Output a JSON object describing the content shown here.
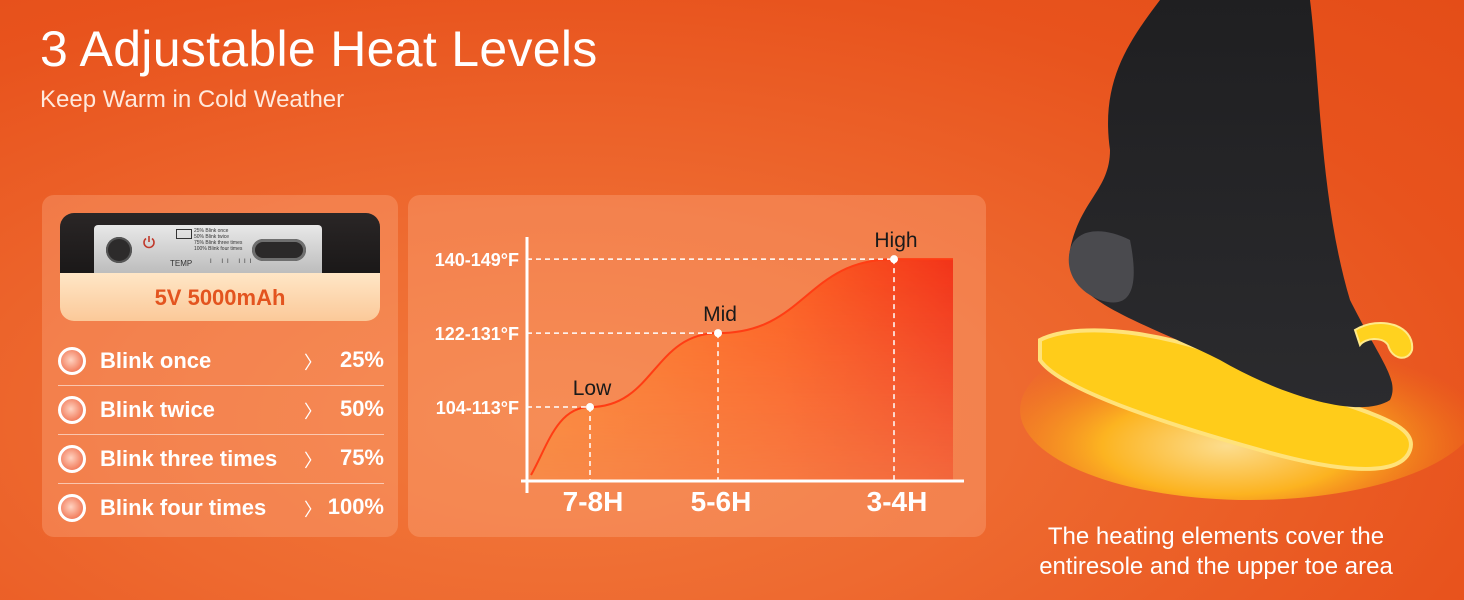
{
  "header": {
    "title": "3 Adjustable Heat Levels",
    "subtitle": "Keep Warm in Cold Weather"
  },
  "device": {
    "capacity": "5V 5000mAh",
    "legend": [
      "25% Blink once",
      "50% Blink twice",
      "75% Blink three times",
      "100% Blink four times"
    ],
    "temp_label": "TEMP",
    "temp_marks": "I II III",
    "icons": [
      "power-icon",
      "battery-icon",
      "usb-c-port"
    ]
  },
  "blink_levels": [
    {
      "label": "Blink once",
      "arrow": "〉",
      "value": "25%"
    },
    {
      "label": "Blink twice",
      "arrow": "〉",
      "value": "50%"
    },
    {
      "label": "Blink three times",
      "arrow": "〉",
      "value": "75%"
    },
    {
      "label": "Blink four times",
      "arrow": "〉",
      "value": "100%"
    }
  ],
  "chart_data": {
    "type": "area",
    "categories": [
      "7-8H",
      "5-6H",
      "3-4H"
    ],
    "levels": [
      "Low",
      "Mid",
      "High"
    ],
    "y_tick_labels": [
      "104-113°F",
      "122-131°F",
      "140-149°F"
    ],
    "values": [
      1,
      2,
      3
    ],
    "ylim": [
      0,
      3.3
    ],
    "grid": false,
    "colors": {
      "fill_start": "#ff8a2a",
      "fill_end": "#f22a10",
      "guide": "#ffffff"
    }
  },
  "caption": {
    "line1": "The heating elements cover the",
    "line2": "entiresole and the upper toe area"
  },
  "colors": {
    "background": "#ec5e25",
    "accent": "#e3541f",
    "panel": "#f5a27a"
  }
}
